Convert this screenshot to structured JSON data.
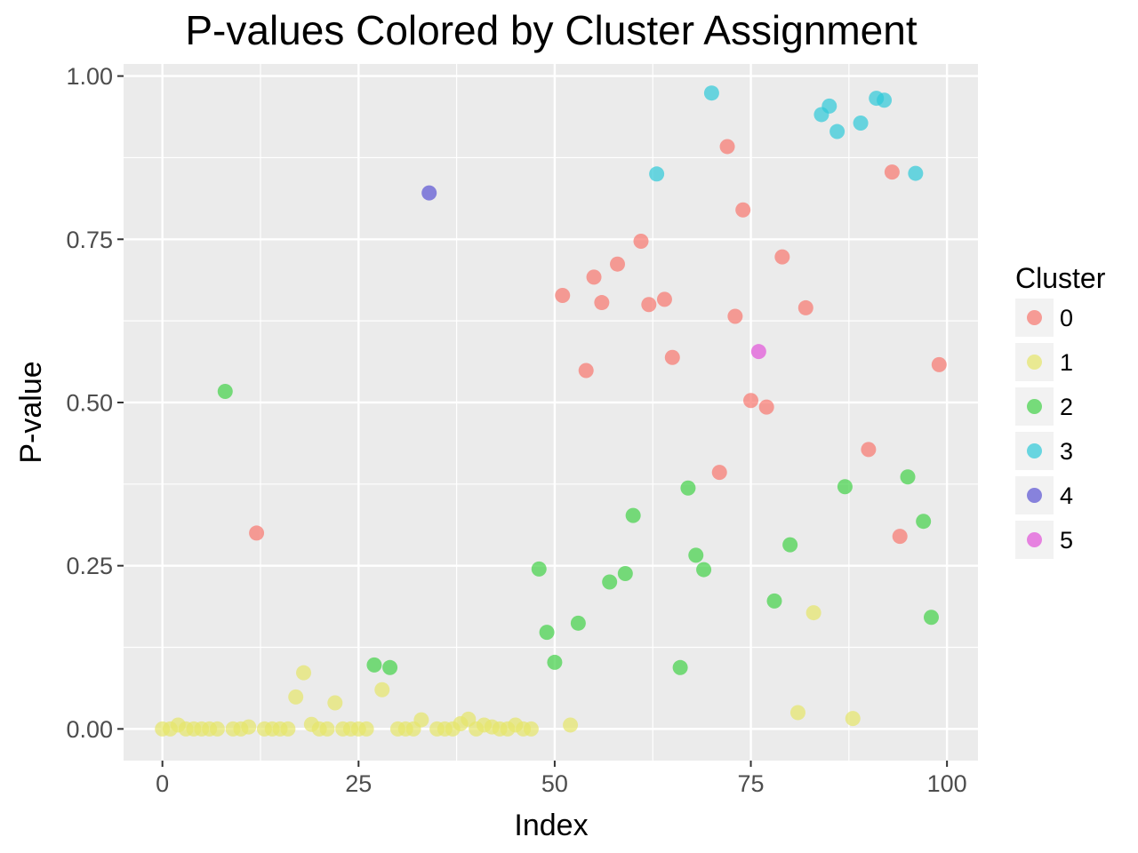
{
  "chart_data": {
    "type": "scatter",
    "title": "P-values Colored by Cluster Assignment",
    "xlabel": "Index",
    "ylabel": "P-value",
    "xlim": [
      -4.95,
      103.95
    ],
    "ylim": [
      -0.0485,
      1.0185
    ],
    "x_ticks": [
      0,
      25,
      50,
      75,
      100
    ],
    "x_tick_labels": [
      "0",
      "25",
      "50",
      "75",
      "100"
    ],
    "y_ticks": [
      0,
      0.25,
      0.5,
      0.75,
      1
    ],
    "y_tick_labels": [
      "0.00",
      "0.25",
      "0.50",
      "0.75",
      "1.00"
    ],
    "grid": true,
    "legend": {
      "title": "Cluster",
      "position": "right",
      "entries": [
        "0",
        "1",
        "2",
        "3",
        "4",
        "5"
      ]
    },
    "colors": {
      "0": "#F8766D",
      "1": "#E6E669",
      "2": "#41D247",
      "3": "#2DC9D9",
      "4": "#5A52D3",
      "5": "#E153D9"
    },
    "series": [
      {
        "name": "0",
        "points": [
          [
            12,
            0.3
          ],
          [
            51,
            0.664
          ],
          [
            54,
            0.549
          ],
          [
            55,
            0.692
          ],
          [
            56,
            0.653
          ],
          [
            58,
            0.712
          ],
          [
            61,
            0.747
          ],
          [
            62,
            0.65
          ],
          [
            64,
            0.658
          ],
          [
            65,
            0.569
          ],
          [
            71,
            0.393
          ],
          [
            72,
            0.892
          ],
          [
            73,
            0.632
          ],
          [
            74,
            0.795
          ],
          [
            75,
            0.503
          ],
          [
            77,
            0.493
          ],
          [
            79,
            0.723
          ],
          [
            82,
            0.645
          ],
          [
            90,
            0.428
          ],
          [
            93,
            0.853
          ],
          [
            94,
            0.295
          ],
          [
            99,
            0.558
          ]
        ]
      },
      {
        "name": "1",
        "points": [
          [
            0,
            0.0
          ],
          [
            1,
            0.0
          ],
          [
            2,
            0.006
          ],
          [
            3,
            0.0
          ],
          [
            4,
            0.0
          ],
          [
            5,
            0.0
          ],
          [
            6,
            0.0
          ],
          [
            7,
            0.0
          ],
          [
            9,
            0.0
          ],
          [
            10,
            0.0
          ],
          [
            11,
            0.003
          ],
          [
            13,
            0.0
          ],
          [
            14,
            0.0
          ],
          [
            15,
            0.0
          ],
          [
            16,
            0.0
          ],
          [
            17,
            0.049
          ],
          [
            18,
            0.086
          ],
          [
            19,
            0.007
          ],
          [
            20,
            0.0
          ],
          [
            21,
            0.0
          ],
          [
            22,
            0.04
          ],
          [
            23,
            0.0
          ],
          [
            24,
            0.0
          ],
          [
            25,
            0.0
          ],
          [
            26,
            0.0
          ],
          [
            28,
            0.06
          ],
          [
            30,
            0.0
          ],
          [
            31,
            0.0
          ],
          [
            32,
            0.0
          ],
          [
            33,
            0.014
          ],
          [
            35,
            0.0
          ],
          [
            36,
            0.0
          ],
          [
            37,
            0.0
          ],
          [
            38,
            0.008
          ],
          [
            39,
            0.015
          ],
          [
            40,
            0.0
          ],
          [
            41,
            0.006
          ],
          [
            42,
            0.003
          ],
          [
            43,
            0.0
          ],
          [
            44,
            0.0
          ],
          [
            45,
            0.006
          ],
          [
            46,
            0.0
          ],
          [
            47,
            0.0
          ],
          [
            52,
            0.006
          ],
          [
            81,
            0.025
          ],
          [
            83,
            0.178
          ],
          [
            88,
            0.016
          ]
        ]
      },
      {
        "name": "2",
        "points": [
          [
            8,
            0.517
          ],
          [
            27,
            0.098
          ],
          [
            29,
            0.094
          ],
          [
            48,
            0.245
          ],
          [
            49,
            0.148
          ],
          [
            50,
            0.102
          ],
          [
            53,
            0.162
          ],
          [
            57,
            0.225
          ],
          [
            59,
            0.238
          ],
          [
            60,
            0.327
          ],
          [
            66,
            0.094
          ],
          [
            67,
            0.369
          ],
          [
            68,
            0.266
          ],
          [
            69,
            0.244
          ],
          [
            78,
            0.196
          ],
          [
            80,
            0.282
          ],
          [
            87,
            0.371
          ],
          [
            95,
            0.386
          ],
          [
            97,
            0.318
          ],
          [
            98,
            0.171
          ]
        ]
      },
      {
        "name": "3",
        "points": [
          [
            63,
            0.85
          ],
          [
            70,
            0.974
          ],
          [
            84,
            0.941
          ],
          [
            85,
            0.954
          ],
          [
            86,
            0.915
          ],
          [
            89,
            0.928
          ],
          [
            91,
            0.966
          ],
          [
            92,
            0.963
          ],
          [
            96,
            0.851
          ]
        ]
      },
      {
        "name": "4",
        "points": [
          [
            34,
            0.821
          ]
        ]
      },
      {
        "name": "5",
        "points": [
          [
            76,
            0.578
          ]
        ]
      }
    ]
  }
}
